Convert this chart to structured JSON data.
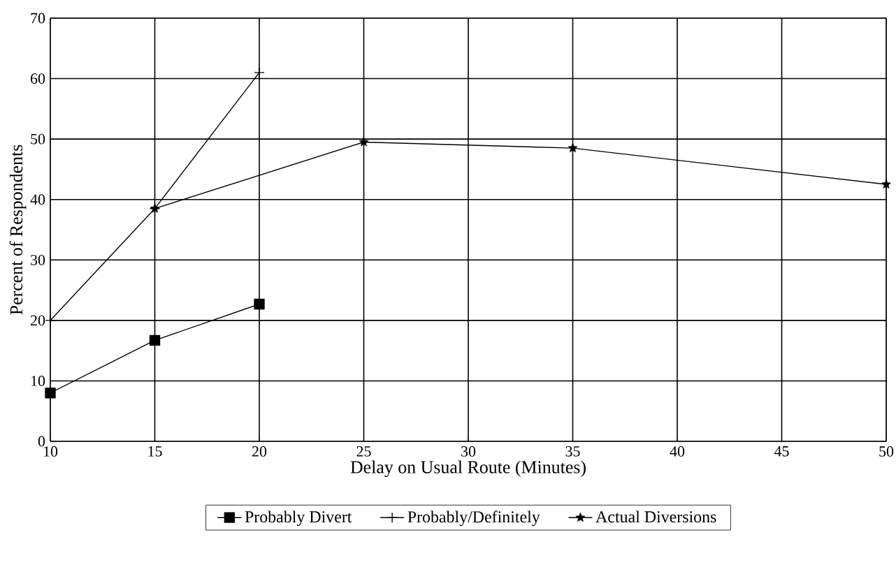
{
  "chart_data": {
    "type": "line",
    "xlabel": "Delay on Usual Route (Minutes)",
    "ylabel": "Percent of Respondents",
    "xlim": [
      10,
      50
    ],
    "ylim": [
      0,
      70
    ],
    "xticks": [
      10,
      15,
      20,
      25,
      30,
      35,
      40,
      45,
      50
    ],
    "yticks": [
      0,
      10,
      20,
      30,
      40,
      50,
      60,
      70
    ],
    "grid": true,
    "legend": "bottom",
    "line_style": "solid",
    "series": [
      {
        "name": "Probably Divert",
        "color": "#000000",
        "marker": "square",
        "x": [
          10,
          15,
          20
        ],
        "values": [
          8,
          16.7,
          22.7
        ]
      },
      {
        "name": "Probably/Definitely",
        "color": "#000000",
        "marker": "cross",
        "x": [
          10,
          15,
          20
        ],
        "values": [
          20,
          38.5,
          61
        ]
      },
      {
        "name": "Actual Diversions",
        "color": "#000000",
        "marker": "star",
        "x": [
          15,
          25,
          35,
          50
        ],
        "values": [
          38.5,
          49.5,
          48.5,
          42.5
        ]
      }
    ]
  }
}
